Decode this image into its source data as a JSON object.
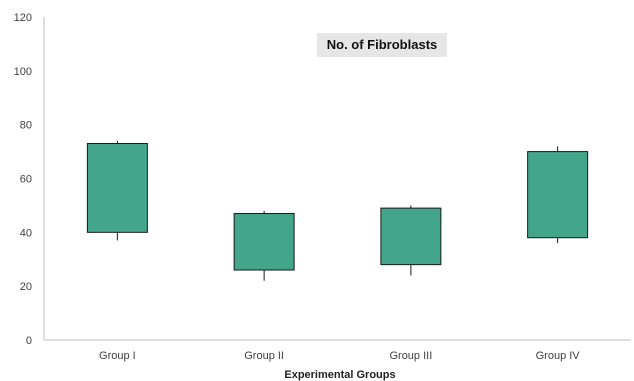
{
  "chart_data": {
    "type": "box",
    "title": "No. of Fibroblasts",
    "xlabel": "Experimental Groups",
    "ylabel": "",
    "ylim": [
      0,
      120
    ],
    "yticks": [
      0,
      20,
      40,
      60,
      80,
      100,
      120
    ],
    "categories": [
      "Group I",
      "Group II",
      "Group III",
      "Group IV"
    ],
    "boxes": [
      {
        "category": "Group I",
        "whisker_low": 37,
        "q1": 40,
        "q3": 73,
        "whisker_high": 74
      },
      {
        "category": "Group II",
        "whisker_low": 22,
        "q1": 26,
        "q3": 47,
        "whisker_high": 48
      },
      {
        "category": "Group III",
        "whisker_low": 24,
        "q1": 28,
        "q3": 49,
        "whisker_high": 50
      },
      {
        "category": "Group IV",
        "whisker_low": 36,
        "q1": 38,
        "q3": 70,
        "whisker_high": 72
      }
    ],
    "box_color": "#43a68a",
    "box_edge_color": "#1a1a1a",
    "title_background": "#e6e6e6",
    "grid": false,
    "legend": "none"
  }
}
